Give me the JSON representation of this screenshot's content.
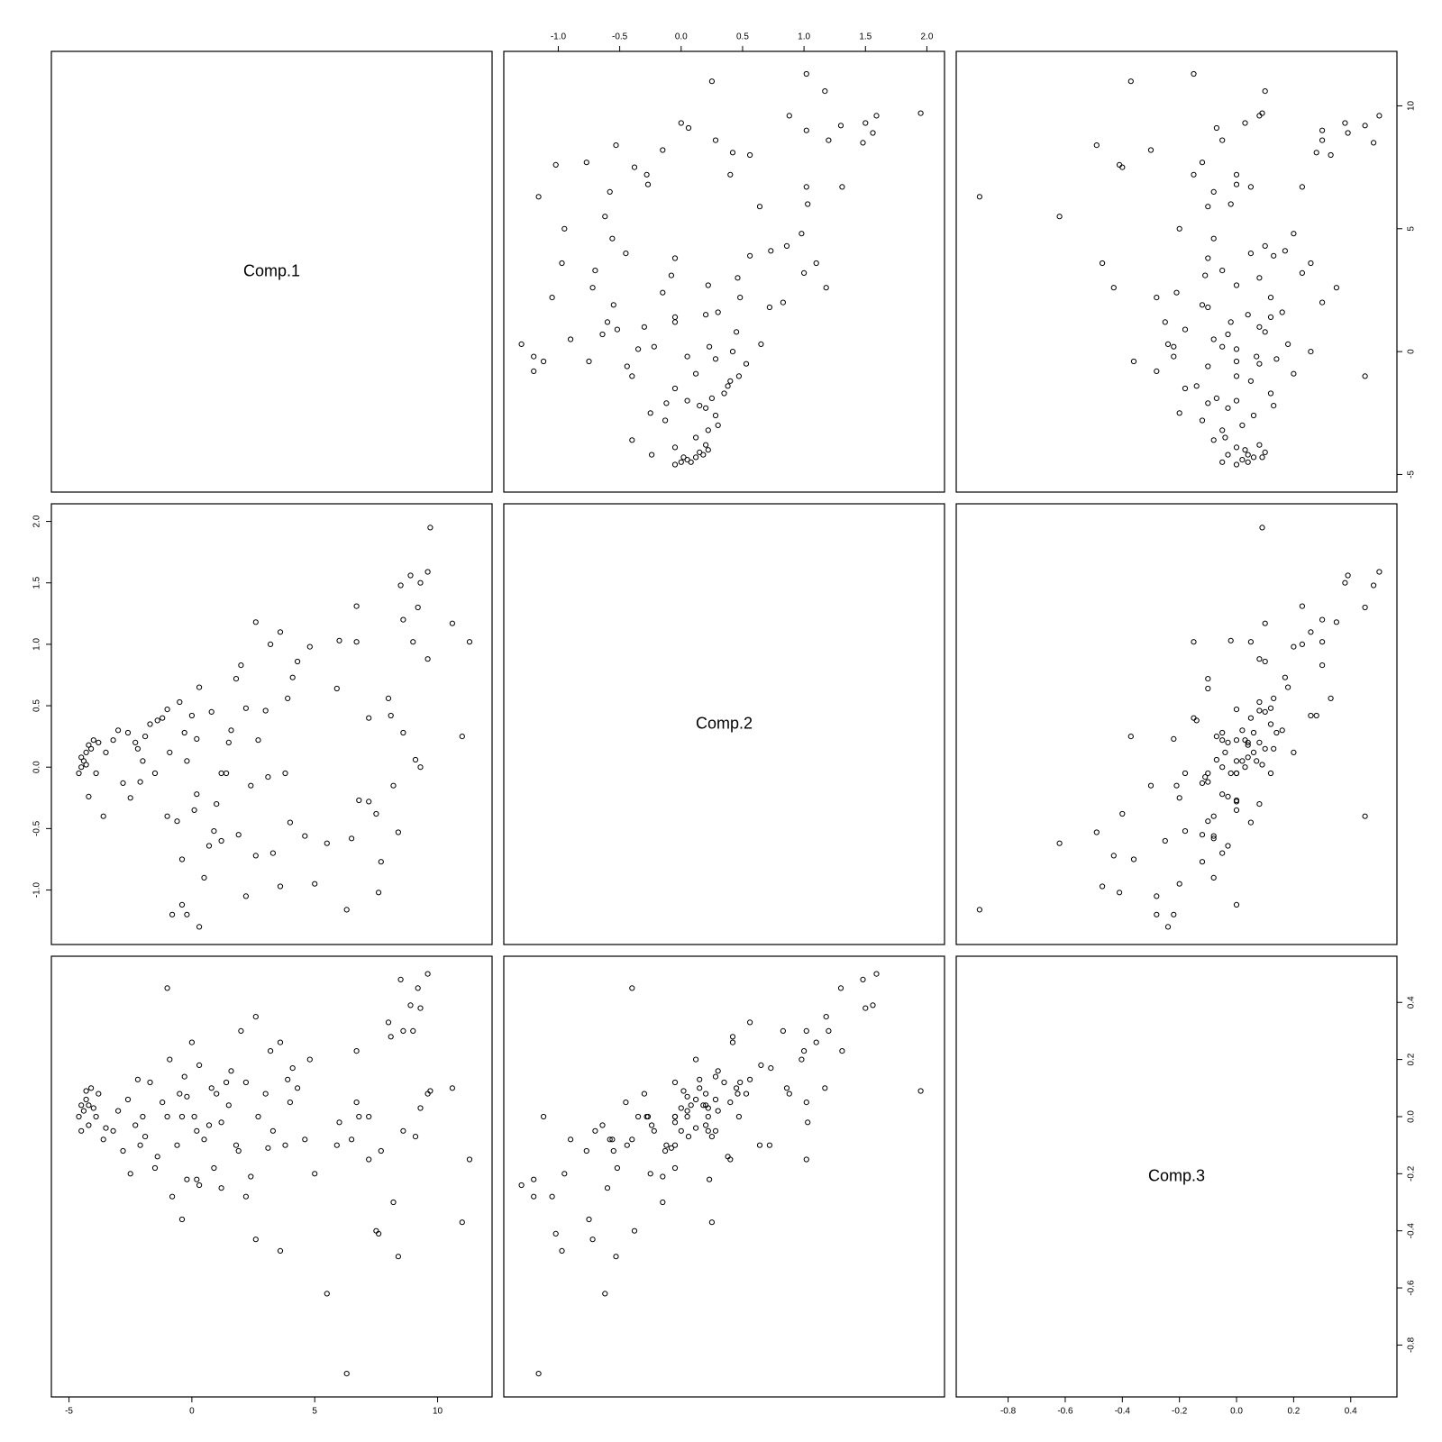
{
  "chart_data": {
    "type": "scatter",
    "kind": "pairs-matrix",
    "point_style": "open-circle",
    "variables": [
      {
        "name": "Comp.1",
        "range": [
          -5.0,
          11.5
        ],
        "ticks": [
          -5,
          0,
          5,
          10
        ],
        "tick_labels": [
          "-5",
          "0",
          "5",
          "10"
        ]
      },
      {
        "name": "Comp.2",
        "range": [
          -1.3,
          2.0
        ],
        "ticks": [
          -1.0,
          -0.5,
          0.0,
          0.5,
          1.0,
          1.5,
          2.0
        ],
        "tick_labels": [
          "-1.0",
          "-0.5",
          "0.0",
          "0.5",
          "1.0",
          "1.5",
          "2.0"
        ]
      },
      {
        "name": "Comp.3",
        "range": [
          -0.92,
          0.5
        ],
        "ticks": [
          -0.8,
          -0.6,
          -0.4,
          -0.2,
          0.0,
          0.2,
          0.4
        ],
        "tick_labels": [
          "-0.8",
          "-0.6",
          "-0.4",
          "-0.2",
          "0.0",
          "0.2",
          "0.4"
        ]
      }
    ],
    "axes": [
      {
        "variable": 0,
        "side": "bottom"
      },
      {
        "variable": 1,
        "side": "top"
      },
      {
        "variable": 2,
        "side": "bottom"
      },
      {
        "variable": 0,
        "side": "right"
      },
      {
        "variable": 1,
        "side": "left"
      },
      {
        "variable": 2,
        "side": "right"
      }
    ],
    "observations": [
      [
        11.3,
        1.02,
        -0.15
      ],
      [
        9.7,
        1.95,
        0.09
      ],
      [
        9.6,
        1.59,
        0.5
      ],
      [
        9.3,
        1.5,
        0.38
      ],
      [
        8.5,
        1.48,
        0.48
      ],
      [
        8.9,
        1.56,
        0.39
      ],
      [
        8.6,
        1.2,
        0.3
      ],
      [
        9.2,
        1.3,
        0.45
      ],
      [
        9.0,
        1.02,
        0.3
      ],
      [
        9.6,
        0.88,
        0.08
      ],
      [
        8.6,
        0.28,
        -0.05
      ],
      [
        9.3,
        0.0,
        0.03
      ],
      [
        9.1,
        0.06,
        -0.07
      ],
      [
        8.0,
        0.56,
        0.33
      ],
      [
        8.2,
        -0.15,
        -0.3
      ],
      [
        8.1,
        0.42,
        0.28
      ],
      [
        8.4,
        -0.53,
        -0.49
      ],
      [
        10.6,
        1.17,
        0.1
      ],
      [
        11.0,
        0.25,
        -0.37
      ],
      [
        7.2,
        0.4,
        -0.15
      ],
      [
        6.7,
        1.31,
        0.23
      ],
      [
        6.7,
        1.02,
        0.05
      ],
      [
        6.0,
        1.03,
        -0.02
      ],
      [
        5.9,
        0.64,
        -0.1
      ],
      [
        7.2,
        -0.28,
        0.0
      ],
      [
        7.5,
        -0.38,
        -0.4
      ],
      [
        7.6,
        -1.02,
        -0.41
      ],
      [
        7.7,
        -0.77,
        -0.12
      ],
      [
        6.8,
        -0.27,
        0.0
      ],
      [
        6.5,
        -0.58,
        -0.08
      ],
      [
        6.3,
        -1.16,
        -0.9
      ],
      [
        5.5,
        -0.62,
        -0.62
      ],
      [
        5.0,
        -0.95,
        -0.2
      ],
      [
        4.6,
        -0.56,
        -0.08
      ],
      [
        4.0,
        -0.45,
        0.05
      ],
      [
        3.6,
        -0.97,
        -0.47
      ],
      [
        4.8,
        0.98,
        0.2
      ],
      [
        4.3,
        0.86,
        0.1
      ],
      [
        4.1,
        0.73,
        0.17
      ],
      [
        3.9,
        0.56,
        0.13
      ],
      [
        3.6,
        1.1,
        0.26
      ],
      [
        3.2,
        1.0,
        0.23
      ],
      [
        2.6,
        1.18,
        0.35
      ],
      [
        2.2,
        0.48,
        0.12
      ],
      [
        2.0,
        0.83,
        0.3
      ],
      [
        1.8,
        0.72,
        -0.1
      ],
      [
        1.5,
        0.2,
        0.04
      ],
      [
        1.2,
        -0.05,
        -0.02
      ],
      [
        1.0,
        -0.3,
        0.08
      ],
      [
        0.8,
        0.45,
        0.1
      ],
      [
        0.3,
        0.65,
        0.18
      ],
      [
        0.0,
        0.42,
        0.26
      ],
      [
        -0.3,
        0.28,
        0.14
      ],
      [
        -0.4,
        -1.12,
        0.0
      ],
      [
        -0.2,
        -1.2,
        -0.22
      ],
      [
        0.3,
        -1.3,
        -0.24
      ],
      [
        0.5,
        -0.9,
        -0.08
      ],
      [
        -0.8,
        -1.2,
        -0.28
      ],
      [
        -1.0,
        -0.4,
        0.45
      ],
      [
        -0.9,
        0.12,
        0.2
      ],
      [
        -1.7,
        0.35,
        0.12
      ],
      [
        -2.0,
        0.05,
        0.0
      ],
      [
        -2.1,
        -0.12,
        -0.1
      ],
      [
        -2.3,
        0.2,
        -0.03
      ],
      [
        -2.6,
        0.28,
        0.06
      ],
      [
        -3.2,
        0.22,
        -0.05
      ],
      [
        -3.8,
        0.2,
        0.08
      ],
      [
        -4.1,
        0.15,
        0.1
      ],
      [
        -4.3,
        0.02,
        0.09
      ],
      [
        -4.6,
        -0.05,
        0.0
      ],
      [
        -4.5,
        0.08,
        0.04
      ],
      [
        -4.2,
        -0.24,
        -0.03
      ],
      [
        -3.6,
        -0.4,
        -0.08
      ],
      [
        -2.8,
        -0.13,
        -0.12
      ],
      [
        -1.5,
        -0.05,
        -0.18
      ],
      [
        -0.4,
        -0.75,
        -0.36
      ],
      [
        0.2,
        -0.22,
        -0.05
      ],
      [
        0.9,
        -0.52,
        -0.18
      ],
      [
        1.4,
        -0.05,
        0.12
      ],
      [
        1.9,
        -0.55,
        -0.12
      ],
      [
        2.4,
        -0.15,
        -0.21
      ],
      [
        2.7,
        0.22,
        0.0
      ],
      [
        3.0,
        0.46,
        0.08
      ],
      [
        3.1,
        -0.08,
        -0.11
      ],
      [
        2.6,
        -0.72,
        -0.43
      ],
      [
        2.2,
        -1.05,
        -0.28
      ],
      [
        3.3,
        -0.7,
        -0.05
      ],
      [
        1.2,
        -0.6,
        -0.25
      ],
      [
        0.7,
        -0.64,
        -0.03
      ],
      [
        0.1,
        -0.35,
        0.0
      ],
      [
        -0.6,
        -0.44,
        -0.1
      ],
      [
        -1.2,
        0.4,
        0.05
      ],
      [
        -0.2,
        0.05,
        0.07
      ],
      [
        1.6,
        0.3,
        0.16
      ],
      [
        3.8,
        -0.05,
        -0.1
      ],
      [
        -4.5,
        0.0,
        -0.05
      ],
      [
        -4.4,
        0.05,
        0.02
      ],
      [
        -4.3,
        0.12,
        0.06
      ],
      [
        -4.2,
        0.18,
        0.04
      ],
      [
        -4.0,
        0.22,
        0.03
      ],
      [
        -3.9,
        -0.05,
        0.0
      ],
      [
        -3.5,
        0.12,
        -0.04
      ],
      [
        -3.0,
        0.3,
        0.02
      ],
      [
        -2.5,
        -0.25,
        -0.2
      ],
      [
        -2.2,
        0.15,
        0.13
      ],
      [
        -1.9,
        0.25,
        -0.07
      ],
      [
        -1.4,
        0.38,
        -0.14
      ],
      [
        -1.0,
        0.47,
        0.0
      ],
      [
        -0.5,
        0.53,
        0.08
      ],
      [
        0.2,
        0.23,
        -0.22
      ]
    ]
  }
}
